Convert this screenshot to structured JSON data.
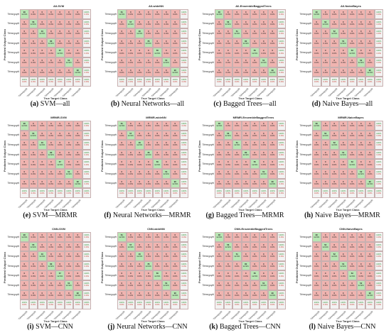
{
  "colors": {
    "diag": "#b9e6b4",
    "off": "#f0b4b0",
    "summary": "#f3f3f3",
    "summary_text": "#2f8f2f",
    "summary_err": "#c0392b"
  },
  "class_label": "Tiêmnguyệt",
  "y_axis_label": "Predicted Output Class",
  "x_axis_label": "True Target Class",
  "panels": [
    {
      "title": "All-SVM",
      "caption_letter": "(a)",
      "caption_text": "SVM—all",
      "diag": [
        90,
        56,
        40,
        80,
        57,
        54,
        90
      ]
    },
    {
      "title": "All-wideNN",
      "caption_letter": "(b)",
      "caption_text": "Neural Networks—all",
      "diag": [
        61,
        57,
        46,
        78,
        56,
        54,
        90
      ]
    },
    {
      "title": "All-EnsembleBaggedTrees",
      "caption_letter": "(c)",
      "caption_text": "Bagged Trees—all",
      "diag": [
        48,
        56,
        51,
        80,
        55,
        54,
        90
      ]
    },
    {
      "title": "All-NaiveBayes",
      "caption_letter": "(d)",
      "caption_text": "Naive Bayes—all",
      "diag": [
        90,
        52,
        52,
        54,
        53,
        52,
        90
      ]
    },
    {
      "title": "MRMR-SVM",
      "caption_letter": "(e)",
      "caption_text": "SVM—MRMR",
      "diag": [
        90,
        55,
        40,
        80,
        57,
        54,
        90
      ]
    },
    {
      "title": "MRMR-wideNN",
      "caption_letter": "(f)",
      "caption_text": "Neural Networks—MRMR",
      "diag": [
        61,
        57,
        46,
        78,
        56,
        54,
        90
      ]
    },
    {
      "title": "MRMR-EnsembleBaggedTrees",
      "caption_letter": "(g)",
      "caption_text": "Bagged Trees—MRMR",
      "diag": [
        48,
        56,
        51,
        80,
        55,
        54,
        90
      ]
    },
    {
      "title": "MRMR-NaiveBayes",
      "caption_letter": "(h)",
      "caption_text": "Naive Bayes—MRMR",
      "diag": [
        90,
        52,
        52,
        54,
        53,
        52,
        90
      ]
    },
    {
      "title": "CNN-SVM",
      "caption_letter": "(i)",
      "caption_text": "SVM—CNN",
      "diag": [
        90,
        55,
        40,
        80,
        57,
        54,
        90
      ]
    },
    {
      "title": "CNN-wideNN",
      "caption_letter": "(j)",
      "caption_text": "Neural Networks—CNN",
      "diag": [
        61,
        57,
        46,
        78,
        56,
        54,
        90
      ]
    },
    {
      "title": "CNN-EnsembleBaggedTrees",
      "caption_letter": "(k)",
      "caption_text": "Bagged Trees—CNN",
      "diag": [
        48,
        56,
        51,
        80,
        55,
        54,
        90
      ]
    },
    {
      "title": "CNN-NaiveBayes",
      "caption_letter": "(l)",
      "caption_text": "Naive Bayes—CNN",
      "diag": [
        90,
        52,
        52,
        54,
        53,
        52,
        90
      ]
    }
  ],
  "cell_pct": "12.9%",
  "off_value": "0",
  "off_pct": "0.0%",
  "summary_pct": "100%",
  "summary_err": "0.0%"
}
